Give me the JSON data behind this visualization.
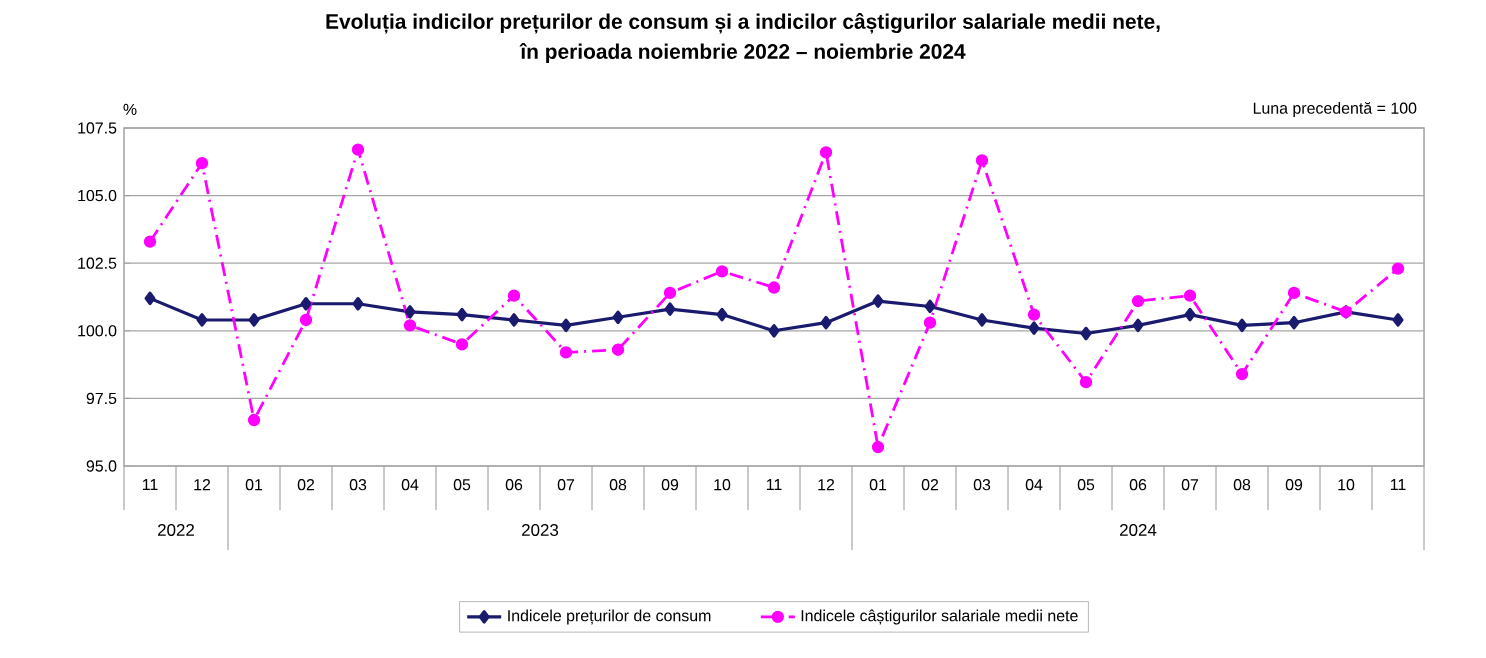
{
  "chart_data": {
    "type": "line",
    "title": "Evoluția indicilor prețurilor de consum și a indicilor câștigurilor salariale medii nete,",
    "subtitle": "în perioada noiembrie 2022 – noiembrie 2024",
    "ylabel": "%",
    "annotations": [
      "Luna precedentă = 100",
      "2022",
      "2023",
      "2024"
    ],
    "x": [
      "2022-11",
      "2022-12",
      "2023-01",
      "2023-02",
      "2023-03",
      "2023-04",
      "2023-05",
      "2023-06",
      "2023-07",
      "2023-08",
      "2023-09",
      "2023-10",
      "2023-11",
      "2023-12",
      "2024-01",
      "2024-02",
      "2024-03",
      "2024-04",
      "2024-05",
      "2024-06",
      "2024-07",
      "2024-08",
      "2024-09",
      "2024-10",
      "2024-11"
    ],
    "xlim": [
      "2022-10-16",
      "2024-11-16"
    ],
    "xticks": [
      {
        "value": "2022-11",
        "label": "11"
      },
      {
        "value": "2022-12",
        "label": "12"
      },
      {
        "value": "2023-01",
        "label": "01"
      },
      {
        "value": "2023-02",
        "label": "02"
      },
      {
        "value": "2023-03",
        "label": "03"
      },
      {
        "value": "2023-04",
        "label": "04"
      },
      {
        "value": "2023-05",
        "label": "05"
      },
      {
        "value": "2023-06",
        "label": "06"
      },
      {
        "value": "2023-07",
        "label": "07"
      },
      {
        "value": "2023-08",
        "label": "08"
      },
      {
        "value": "2023-09",
        "label": "09"
      },
      {
        "value": "2023-10",
        "label": "10"
      },
      {
        "value": "2023-11",
        "label": "11"
      },
      {
        "value": "2023-12",
        "label": "12"
      },
      {
        "value": "2024-01",
        "label": "01"
      },
      {
        "value": "2024-02",
        "label": "02"
      },
      {
        "value": "2024-03",
        "label": "03"
      },
      {
        "value": "2024-04",
        "label": "04"
      },
      {
        "value": "2024-05",
        "label": "05"
      },
      {
        "value": "2024-06",
        "label": "06"
      },
      {
        "value": "2024-07",
        "label": "07"
      },
      {
        "value": "2024-08",
        "label": "08"
      },
      {
        "value": "2024-09",
        "label": "09"
      },
      {
        "value": "2024-10",
        "label": "10"
      },
      {
        "value": "2024-11",
        "label": "11"
      }
    ],
    "ylim": [
      95,
      107.5
    ],
    "yticks": [
      {
        "value": 95,
        "label": "95.0"
      },
      {
        "value": 97.5,
        "label": "97.5"
      },
      {
        "value": 100,
        "label": "100.0"
      },
      {
        "value": 102.5,
        "label": "102.5"
      },
      {
        "value": 105,
        "label": "105.0"
      },
      {
        "value": 107.5,
        "label": "107.5"
      }
    ],
    "grid": "y",
    "legend": "bottom",
    "series": [
      {
        "name": "Indicele prețurilor de consum",
        "color": "#1a1a6e",
        "marker": "diamond",
        "line_style": "solid",
        "values": [
          101.2,
          100.4,
          100.4,
          101.0,
          101.0,
          100.7,
          100.6,
          100.4,
          100.2,
          100.5,
          100.8,
          100.6,
          100.0,
          100.3,
          101.1,
          100.9,
          100.4,
          100.1,
          99.9,
          100.2,
          100.6,
          100.2,
          100.3,
          100.7,
          100.4
        ]
      },
      {
        "name": "Indicele câștigurilor salariale medii nete",
        "color": "#ff00ff",
        "marker": "circle",
        "line_style": "dashed",
        "values": [
          103.3,
          106.2,
          96.7,
          100.4,
          106.7,
          100.2,
          99.5,
          101.3,
          99.2,
          99.3,
          101.4,
          102.2,
          101.6,
          106.6,
          95.7,
          100.3,
          106.3,
          100.6,
          98.1,
          101.1,
          101.3,
          98.4,
          101.4,
          100.7,
          102.3
        ]
      }
    ]
  }
}
